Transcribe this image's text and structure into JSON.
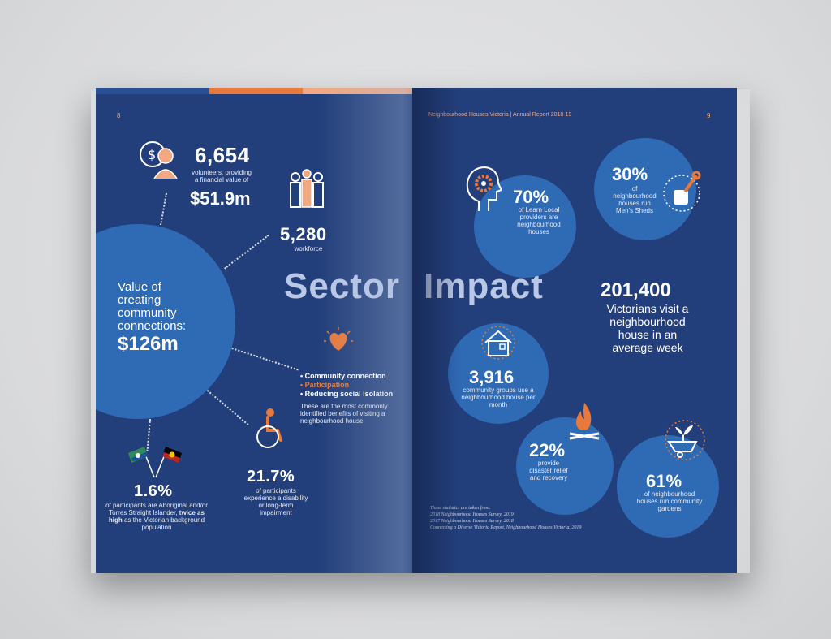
{
  "left_page": {
    "page_number": "8",
    "volunteers": {
      "number": "6,654",
      "desc": "volunteers, providing a financial value of",
      "value": "$51.9m"
    },
    "workforce": {
      "number": "5,280",
      "desc": "workforce"
    },
    "value_circle": {
      "line1": "Value of",
      "line2": "creating",
      "line3": "community",
      "line4": "connections:",
      "value": "$126m"
    },
    "benefits": {
      "items": [
        "Community connection",
        "Participation",
        "Reducing social isolation"
      ],
      "note": "These are the most commonly identified benefits of visiting a neighbourhood house"
    },
    "disability": {
      "number": "21.7%",
      "desc": "of participants experience a disability or long-term impairment"
    },
    "aboriginal": {
      "number": "1.6%",
      "desc_start": "of participants are Aboriginal and/or Torres Straight Islander,",
      "desc_bold": "twice as high",
      "desc_end": "as the Victorian background population"
    },
    "heading_word": "Sector"
  },
  "right_page": {
    "page_number": "9",
    "running_header": "Neighbourhood Houses Victoria  |  Annual Report 2018-19",
    "heading_word": "Impact",
    "learn_local": {
      "number": "70%",
      "desc": "of Learn Local providers are neighbourhood houses"
    },
    "mens_sheds": {
      "number": "30%",
      "desc": "of neighbourhood houses run Men's Sheds"
    },
    "visitors": {
      "number": "201,400",
      "line1": "Victorians visit a",
      "line2": "neighbourhood",
      "line3": "house in an",
      "line4": "average week"
    },
    "community_groups": {
      "number": "3,916",
      "desc": "community groups use a neighbourhood house per month"
    },
    "disaster": {
      "number": "22%",
      "desc": "provide disaster relief and recovery"
    },
    "gardens": {
      "number": "61%",
      "desc": "of neighbourhood houses run community gardens"
    },
    "sources": {
      "intro": "These statistics are taken from:",
      "s1": "2018 Neighbourhood Houses Survey, 2019",
      "s2": "2017 Neighbourhood Houses Survey, 2018",
      "s3": "Connecting a Diverse Victoria Report, Neighbourhood Houses Victoria, 2019"
    }
  },
  "colors": {
    "page_bg": "#233f7b",
    "circle": "#2f6ab5",
    "accent_orange": "#e8793a",
    "heading_tint": "#b9c8e6"
  },
  "icons": [
    "volunteer-dollar-icon",
    "workforce-people-icon",
    "heart-icon",
    "wheelchair-icon",
    "flags-icon",
    "head-gear-icon",
    "wrench-hand-icon",
    "house-icon",
    "campfire-icon",
    "wheelbarrow-plant-icon"
  ]
}
